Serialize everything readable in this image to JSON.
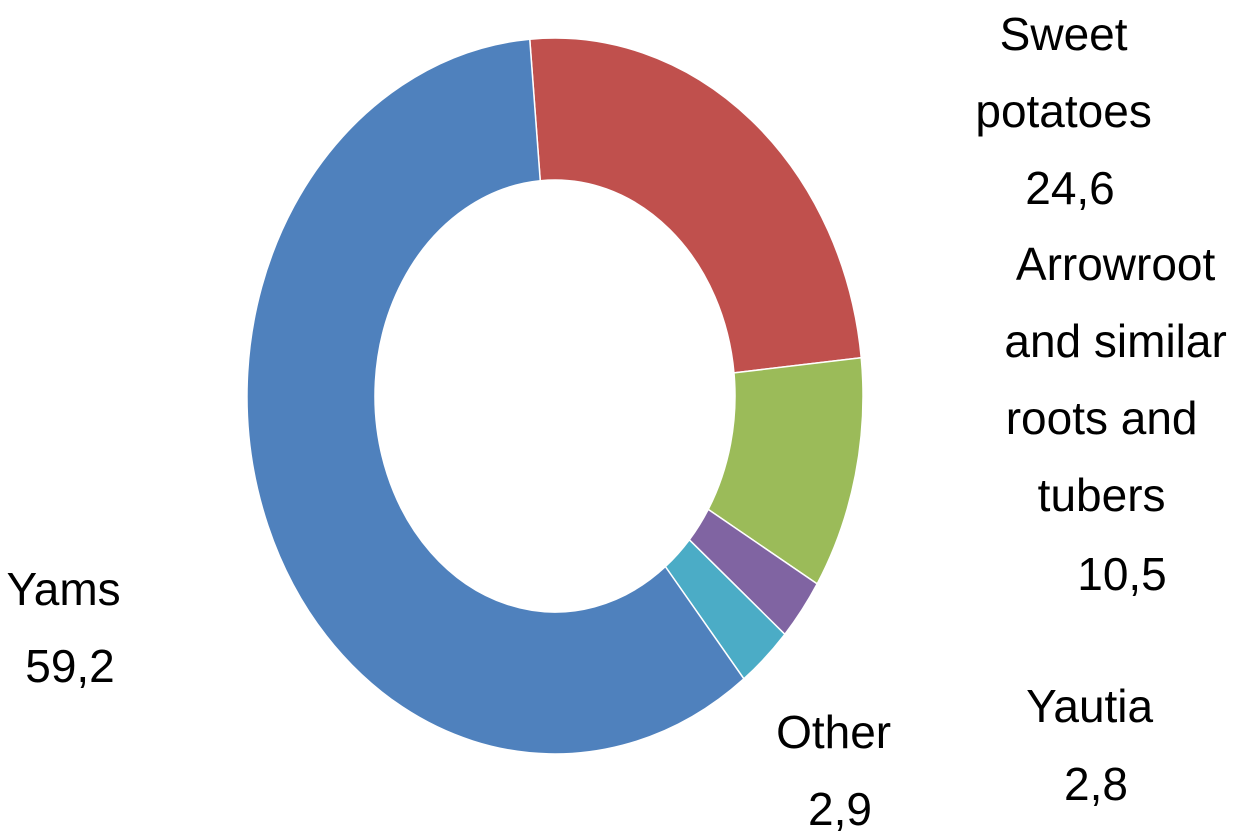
{
  "chart_data": {
    "type": "pie",
    "donut": true,
    "title": "",
    "legend": "none",
    "slices": [
      {
        "label_lines": [
          "Sweet",
          "potatoes"
        ],
        "value_label": "24,6",
        "value": 24.6,
        "color": "#C0504D"
      },
      {
        "label_lines": [
          "Arrowroot",
          "and similar",
          "roots and",
          "tubers"
        ],
        "value_label": "10,5",
        "value": 10.5,
        "color": "#9BBB59"
      },
      {
        "label_lines": [
          "Yautia"
        ],
        "value_label": "2,8",
        "value": 2.8,
        "color": "#8064A2"
      },
      {
        "label_lines": [
          "Other"
        ],
        "value_label": "2,9",
        "value": 2.9,
        "color": "#4BACC6"
      },
      {
        "label_lines": [
          "Yams"
        ],
        "value_label": "59,2",
        "value": 59.2,
        "color": "#4F81BD"
      }
    ]
  }
}
